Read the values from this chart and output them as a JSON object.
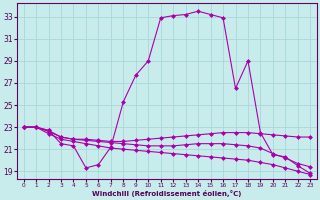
{
  "xlabel": "Windchill (Refroidissement éolien,°C)",
  "background_color": "#c8ecec",
  "grid_color": "#a8d8d8",
  "line_color": "#aa00aa",
  "x_ticks": [
    0,
    1,
    2,
    3,
    4,
    5,
    6,
    7,
    8,
    9,
    10,
    11,
    12,
    13,
    14,
    15,
    16,
    17,
    18,
    19,
    20,
    21,
    22,
    23
  ],
  "y_ticks": [
    19,
    21,
    23,
    25,
    27,
    29,
    31,
    33
  ],
  "ylim": [
    18.3,
    34.2
  ],
  "xlim": [
    -0.5,
    23.5
  ],
  "line_main_x": [
    0,
    1,
    2,
    3,
    4,
    5,
    6,
    7,
    8,
    9,
    10,
    11,
    12,
    13,
    14,
    15,
    16,
    17,
    18,
    19,
    20,
    21,
    22,
    23
  ],
  "line_main_y": [
    23.0,
    23.0,
    22.7,
    21.5,
    21.3,
    19.3,
    19.6,
    21.2,
    25.3,
    27.7,
    29.0,
    32.9,
    33.1,
    33.2,
    33.5,
    33.2,
    32.9,
    26.5,
    29.0,
    22.5,
    20.5,
    20.3,
    19.5,
    18.8
  ],
  "line_flat1_x": [
    0,
    1,
    2,
    3,
    4,
    5,
    6,
    7,
    8,
    9,
    10,
    11,
    12,
    13,
    14,
    15,
    16,
    17,
    18,
    19,
    20,
    21,
    22,
    23
  ],
  "line_flat1_y": [
    23.0,
    23.0,
    22.7,
    22.1,
    21.9,
    21.9,
    21.8,
    21.7,
    21.7,
    21.8,
    21.9,
    22.0,
    22.1,
    22.2,
    22.3,
    22.4,
    22.5,
    22.5,
    22.5,
    22.4,
    22.3,
    22.2,
    22.1,
    22.1
  ],
  "line_flat2_x": [
    0,
    1,
    2,
    3,
    4,
    5,
    6,
    7,
    8,
    9,
    10,
    11,
    12,
    13,
    14,
    15,
    16,
    17,
    18,
    19,
    20,
    21,
    22,
    23
  ],
  "line_flat2_y": [
    23.0,
    23.0,
    22.6,
    22.1,
    21.9,
    21.8,
    21.7,
    21.6,
    21.5,
    21.4,
    21.3,
    21.3,
    21.3,
    21.4,
    21.5,
    21.5,
    21.5,
    21.4,
    21.3,
    21.1,
    20.6,
    20.2,
    19.7,
    19.4
  ],
  "line_flat3_x": [
    0,
    1,
    2,
    3,
    4,
    5,
    6,
    7,
    8,
    9,
    10,
    11,
    12,
    13,
    14,
    15,
    16,
    17,
    18,
    19,
    20,
    21,
    22,
    23
  ],
  "line_flat3_y": [
    23.0,
    23.0,
    22.4,
    21.9,
    21.7,
    21.5,
    21.3,
    21.1,
    21.0,
    20.9,
    20.8,
    20.7,
    20.6,
    20.5,
    20.4,
    20.3,
    20.2,
    20.1,
    20.0,
    19.8,
    19.6,
    19.3,
    19.0,
    18.7
  ]
}
